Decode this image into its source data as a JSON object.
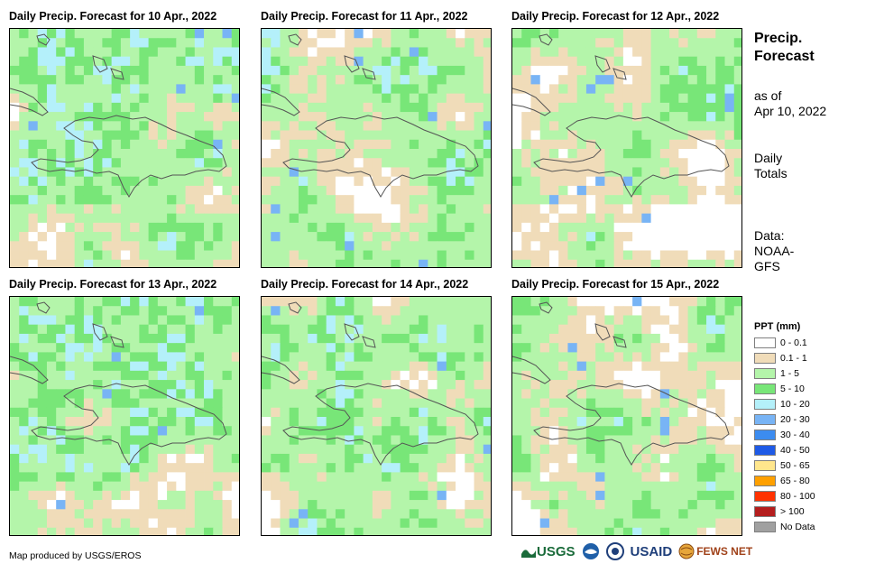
{
  "panels": [
    {
      "title": "Daily Precip. Forecast for 10 Apr., 2022"
    },
    {
      "title": "Daily Precip. Forecast for 11 Apr., 2022"
    },
    {
      "title": "Daily Precip. Forecast for 12 Apr., 2022"
    },
    {
      "title": "Daily Precip. Forecast for 13 Apr., 2022"
    },
    {
      "title": "Daily Precip. Forecast for 14 Apr., 2022"
    },
    {
      "title": "Daily Precip. Forecast for 15 Apr., 2022"
    }
  ],
  "side": {
    "title_line1": "Precip.",
    "title_line2": "Forecast",
    "asof_line1": "as of",
    "asof_line2": "Apr 10, 2022",
    "daily_line1": "Daily",
    "daily_line2": "Totals",
    "data_line1": "Data:",
    "data_line2": "NOAA-",
    "data_line3": "GFS"
  },
  "legend": {
    "title": "PPT (mm)",
    "items": [
      {
        "label": "0 - 0.1",
        "color": "#ffffff"
      },
      {
        "label": "0.1 - 1",
        "color": "#f0dcb9"
      },
      {
        "label": "1 - 5",
        "color": "#b4f5aa"
      },
      {
        "label": "5 - 10",
        "color": "#78e678"
      },
      {
        "label": "10 - 20",
        "color": "#b4f0fa"
      },
      {
        "label": "20 - 30",
        "color": "#78b4f5"
      },
      {
        "label": "30 - 40",
        "color": "#3c8cf0"
      },
      {
        "label": "40 - 50",
        "color": "#1e5ae6"
      },
      {
        "label": "50 - 65",
        "color": "#ffe68c"
      },
      {
        "label": "65 - 80",
        "color": "#ffa000"
      },
      {
        "label": "80 - 100",
        "color": "#ff3200"
      },
      {
        "label": "> 100",
        "color": "#b41e1e"
      },
      {
        "label": "No Data",
        "color": "#a0a0a0"
      }
    ]
  },
  "credit": "Map produced by USGS/EROS",
  "logos": {
    "usgs": "USGS",
    "usaid": "USAID",
    "fewsnet": "FEWS NET"
  }
}
